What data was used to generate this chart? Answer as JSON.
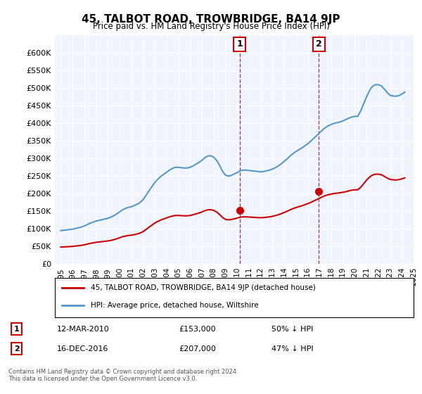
{
  "title": "45, TALBOT ROAD, TROWBRIDGE, BA14 9JP",
  "subtitle": "Price paid vs. HM Land Registry's House Price Index (HPI)",
  "ylabel": "",
  "ylim": [
    0,
    625000
  ],
  "yticks": [
    0,
    50000,
    100000,
    150000,
    200000,
    250000,
    300000,
    350000,
    400000,
    450000,
    500000,
    550000,
    600000
  ],
  "background_color": "#ffffff",
  "plot_bg_color": "#f0f4ff",
  "grid_color": "#ffffff",
  "red_line_color": "#cc0000",
  "blue_line_color": "#5599cc",
  "marker1_date": 2010.2,
  "marker1_value": 153000,
  "marker1_label": "1",
  "marker1_hpi_value": 306000,
  "marker2_date": 2016.95,
  "marker2_value": 207000,
  "marker2_label": "2",
  "marker2_hpi_value": 391000,
  "vline_color": "#cc0000",
  "annotation_box_color": "#cc0000",
  "legend_label_red": "45, TALBOT ROAD, TROWBRIDGE, BA14 9JP (detached house)",
  "legend_label_blue": "HPI: Average price, detached house, Wiltshire",
  "table_row1": [
    "1",
    "12-MAR-2010",
    "£153,000",
    "50% ↓ HPI"
  ],
  "table_row2": [
    "2",
    "16-DEC-2016",
    "£207,000",
    "47% ↓ HPI"
  ],
  "footnote": "Contains HM Land Registry data © Crown copyright and database right 2024.\nThis data is licensed under the Open Government Licence v3.0.",
  "hpi_data_x": [
    1995,
    1995.25,
    1995.5,
    1995.75,
    1996,
    1996.25,
    1996.5,
    1996.75,
    1997,
    1997.25,
    1997.5,
    1997.75,
    1998,
    1998.25,
    1998.5,
    1998.75,
    1999,
    1999.25,
    1999.5,
    1999.75,
    2000,
    2000.25,
    2000.5,
    2000.75,
    2001,
    2001.25,
    2001.5,
    2001.75,
    2002,
    2002.25,
    2002.5,
    2002.75,
    2003,
    2003.25,
    2003.5,
    2003.75,
    2004,
    2004.25,
    2004.5,
    2004.75,
    2005,
    2005.25,
    2005.5,
    2005.75,
    2006,
    2006.25,
    2006.5,
    2006.75,
    2007,
    2007.25,
    2007.5,
    2007.75,
    2008,
    2008.25,
    2008.5,
    2008.75,
    2009,
    2009.25,
    2009.5,
    2009.75,
    2010,
    2010.25,
    2010.5,
    2010.75,
    2011,
    2011.25,
    2011.5,
    2011.75,
    2012,
    2012.25,
    2012.5,
    2012.75,
    2013,
    2013.25,
    2013.5,
    2013.75,
    2014,
    2014.25,
    2014.5,
    2014.75,
    2015,
    2015.25,
    2015.5,
    2015.75,
    2016,
    2016.25,
    2016.5,
    2016.75,
    2017,
    2017.25,
    2017.5,
    2017.75,
    2018,
    2018.25,
    2018.5,
    2018.75,
    2019,
    2019.25,
    2019.5,
    2019.75,
    2020,
    2020.25,
    2020.5,
    2020.75,
    2021,
    2021.25,
    2021.5,
    2021.75,
    2022,
    2022.25,
    2022.5,
    2022.75,
    2023,
    2023.25,
    2023.5,
    2023.75,
    2024,
    2024.25
  ],
  "hpi_data_y": [
    95000,
    96000,
    97000,
    98000,
    99000,
    101000,
    103000,
    105000,
    108000,
    112000,
    116000,
    119000,
    122000,
    124000,
    126000,
    128000,
    130000,
    133000,
    137000,
    142000,
    148000,
    154000,
    158000,
    161000,
    163000,
    166000,
    170000,
    175000,
    183000,
    195000,
    208000,
    220000,
    232000,
    241000,
    249000,
    255000,
    261000,
    267000,
    272000,
    275000,
    275000,
    274000,
    273000,
    273000,
    275000,
    279000,
    284000,
    289000,
    295000,
    302000,
    307000,
    308000,
    304000,
    295000,
    281000,
    264000,
    253000,
    250000,
    252000,
    256000,
    260000,
    265000,
    267000,
    267000,
    266000,
    265000,
    264000,
    263000,
    262000,
    263000,
    265000,
    267000,
    270000,
    274000,
    279000,
    285000,
    292000,
    299000,
    307000,
    314000,
    320000,
    325000,
    330000,
    336000,
    342000,
    349000,
    357000,
    365000,
    373000,
    381000,
    388000,
    393000,
    397000,
    400000,
    402000,
    404000,
    407000,
    411000,
    415000,
    418000,
    420000,
    420000,
    435000,
    455000,
    475000,
    493000,
    505000,
    510000,
    510000,
    507000,
    498000,
    488000,
    480000,
    478000,
    477000,
    479000,
    483000,
    489000
  ],
  "red_data_x": [
    1995,
    1995.25,
    1995.5,
    1995.75,
    1996,
    1996.25,
    1996.5,
    1996.75,
    1997,
    1997.25,
    1997.5,
    1997.75,
    1998,
    1998.25,
    1998.5,
    1998.75,
    1999,
    1999.25,
    1999.5,
    1999.75,
    2000,
    2000.25,
    2000.5,
    2000.75,
    2001,
    2001.25,
    2001.5,
    2001.75,
    2002,
    2002.25,
    2002.5,
    2002.75,
    2003,
    2003.25,
    2003.5,
    2003.75,
    2004,
    2004.25,
    2004.5,
    2004.75,
    2005,
    2005.25,
    2005.5,
    2005.75,
    2006,
    2006.25,
    2006.5,
    2006.75,
    2007,
    2007.25,
    2007.5,
    2007.75,
    2008,
    2008.25,
    2008.5,
    2008.75,
    2009,
    2009.25,
    2009.5,
    2009.75,
    2010,
    2010.25,
    2010.5,
    2010.75,
    2011,
    2011.25,
    2011.5,
    2011.75,
    2012,
    2012.25,
    2012.5,
    2012.75,
    2013,
    2013.25,
    2013.5,
    2013.75,
    2014,
    2014.25,
    2014.5,
    2014.75,
    2015,
    2015.25,
    2015.5,
    2015.75,
    2016,
    2016.25,
    2016.5,
    2016.75,
    2017,
    2017.25,
    2017.5,
    2017.75,
    2018,
    2018.25,
    2018.5,
    2018.75,
    2019,
    2019.25,
    2019.5,
    2019.75,
    2020,
    2020.25,
    2020.5,
    2020.75,
    2021,
    2021.25,
    2021.5,
    2021.75,
    2022,
    2022.25,
    2022.5,
    2022.75,
    2023,
    2023.25,
    2023.5,
    2023.75,
    2024,
    2024.25
  ],
  "red_data_y": [
    48000,
    48500,
    49000,
    49500,
    50000,
    51000,
    52000,
    53000,
    54500,
    56500,
    58500,
    60000,
    61500,
    62500,
    63500,
    64500,
    65500,
    67000,
    69000,
    71500,
    74500,
    77500,
    79500,
    81000,
    82000,
    83500,
    85500,
    88000,
    92000,
    98000,
    104500,
    110500,
    116500,
    121000,
    125000,
    128000,
    131000,
    134000,
    136500,
    138000,
    138000,
    137500,
    137000,
    137000,
    138000,
    140000,
    142500,
    145000,
    148000,
    151500,
    154000,
    154500,
    152500,
    148000,
    141000,
    132500,
    127000,
    125500,
    126500,
    128500,
    130500,
    133000,
    134000,
    134000,
    133500,
    133000,
    132500,
    132000,
    131500,
    132000,
    133000,
    134000,
    135500,
    137500,
    140000,
    143000,
    146500,
    150000,
    154000,
    157500,
    160500,
    163000,
    165500,
    168500,
    171500,
    175000,
    179000,
    183000,
    187000,
    191000,
    194500,
    197000,
    199000,
    200500,
    201500,
    202500,
    204000,
    205500,
    208000,
    210000,
    211000,
    211000,
    218000,
    228000,
    238500,
    247000,
    253000,
    255500,
    255500,
    254000,
    249500,
    244500,
    240500,
    239500,
    239000,
    240000,
    242000,
    245000
  ],
  "xlim": [
    1994.5,
    2025.0
  ],
  "xtick_years": [
    1995,
    1996,
    1997,
    1998,
    1999,
    2000,
    2001,
    2002,
    2003,
    2004,
    2005,
    2006,
    2007,
    2008,
    2009,
    2010,
    2011,
    2012,
    2013,
    2014,
    2015,
    2016,
    2017,
    2018,
    2019,
    2020,
    2021,
    2022,
    2023,
    2024,
    2025
  ]
}
